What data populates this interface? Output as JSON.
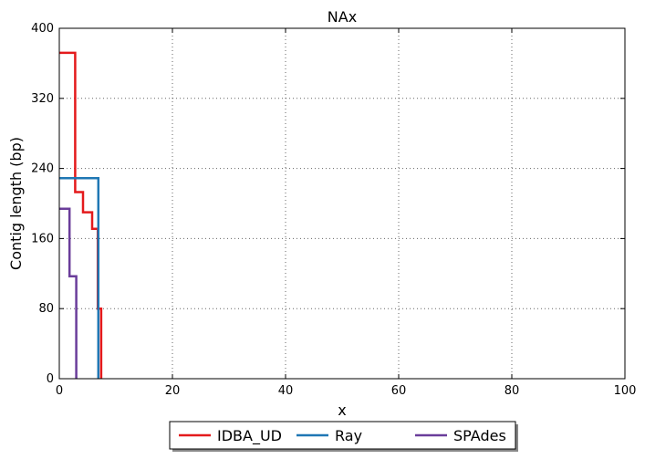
{
  "chart_data": {
    "type": "line",
    "title": "NAx",
    "xlabel": "x",
    "ylabel": "Contig length  (bp)",
    "xlim": [
      0,
      100
    ],
    "ylim": [
      0,
      400
    ],
    "x_ticks": [
      0,
      20,
      40,
      60,
      80,
      100
    ],
    "y_ticks": [
      0,
      80,
      160,
      240,
      320,
      400
    ],
    "x_tick_labels": [
      "0",
      "20",
      "40",
      "60",
      "80",
      "100"
    ],
    "y_tick_labels": [
      "0",
      "80",
      "160",
      "240",
      "320",
      "400"
    ],
    "grid": true,
    "legend_position": "bottom-center",
    "series": [
      {
        "name": "IDBA_UD",
        "color": "#e41a1c",
        "x": [
          0,
          2.8,
          2.8,
          4.2,
          4.2,
          5.8,
          5.8,
          6.8,
          6.8,
          7.4,
          7.4
        ],
        "y": [
          372,
          372,
          213,
          213,
          190,
          190,
          171,
          171,
          80,
          80,
          0
        ]
      },
      {
        "name": "Ray",
        "color": "#1f77b4",
        "x": [
          0,
          6.9,
          6.9
        ],
        "y": [
          229,
          229,
          0
        ]
      },
      {
        "name": "SPAdes",
        "color": "#6a3d9a",
        "x": [
          0,
          1.8,
          1.8,
          3.0,
          3.0
        ],
        "y": [
          194,
          194,
          117,
          117,
          0
        ]
      }
    ]
  }
}
